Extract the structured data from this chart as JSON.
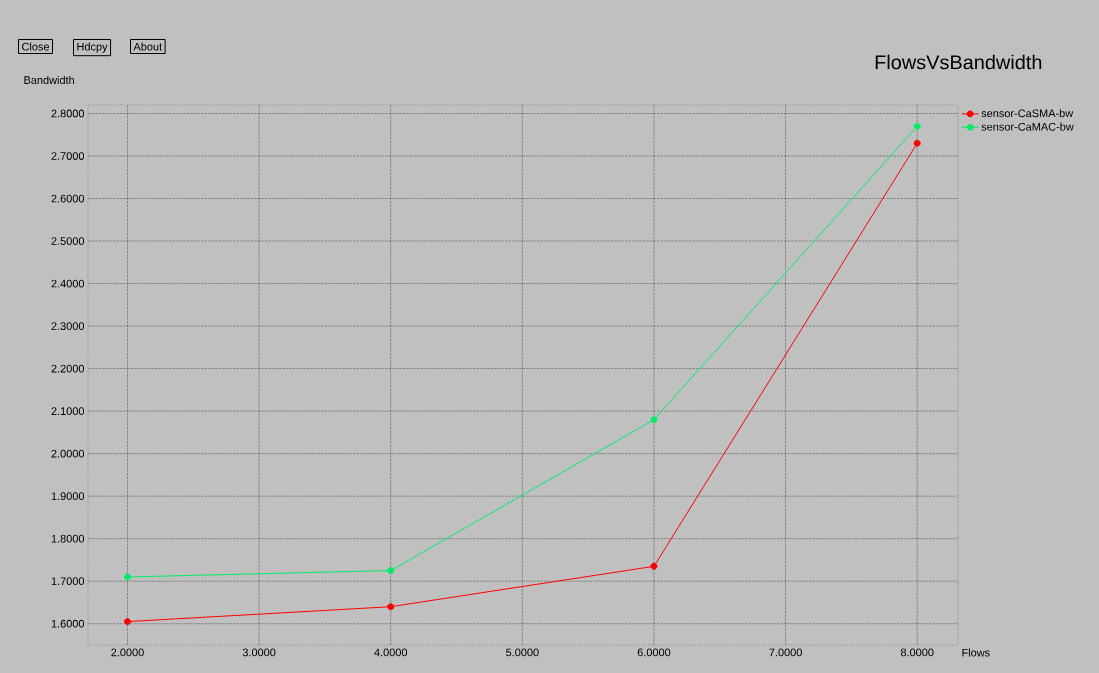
{
  "chart_data": {
    "type": "line",
    "title": "FlowsVsBandwidth",
    "xlabel": "Flows",
    "ylabel": "Bandwidth",
    "annotations": [
      "Close",
      "Hdcpy",
      "About"
    ],
    "x": [
      2,
      4,
      6,
      8
    ],
    "series": [
      {
        "name": "sensor-CaSMA-bw",
        "color": "#ff0000",
        "values": [
          1.605,
          1.64,
          1.735,
          2.73
        ]
      },
      {
        "name": "sensor-CaMAC-bw",
        "color": "#00ee66",
        "values": [
          1.71,
          1.725,
          2.08,
          2.77
        ]
      }
    ],
    "xlim": [
      1.7,
      8.31
    ],
    "xticks": [
      {
        "value": 2,
        "label": "2.0000"
      },
      {
        "value": 3,
        "label": "3.0000"
      },
      {
        "value": 4,
        "label": "4.0000"
      },
      {
        "value": 5,
        "label": "5.0000"
      },
      {
        "value": 6,
        "label": "6.0000"
      },
      {
        "value": 7,
        "label": "7.0000"
      },
      {
        "value": 8,
        "label": "8.0000"
      }
    ],
    "ylim": [
      1.55,
      2.82
    ],
    "yticks": [
      {
        "value": 1.6,
        "label": "1.6000"
      },
      {
        "value": 1.7,
        "label": "1.7000"
      },
      {
        "value": 1.8,
        "label": "1.8000"
      },
      {
        "value": 1.9,
        "label": "1.9000"
      },
      {
        "value": 2.0,
        "label": "2.0000"
      },
      {
        "value": 2.1,
        "label": "2.1000"
      },
      {
        "value": 2.2,
        "label": "2.2000"
      },
      {
        "value": 2.3,
        "label": "2.3000"
      },
      {
        "value": 2.4,
        "label": "2.4000"
      },
      {
        "value": 2.5,
        "label": "2.5000"
      },
      {
        "value": 2.6,
        "label": "2.6000"
      },
      {
        "value": 2.7,
        "label": "2.7000"
      },
      {
        "value": 2.8,
        "label": "2.8000"
      }
    ],
    "grid": true,
    "legend": "top right",
    "marker": "circle",
    "line_style": "solid"
  }
}
